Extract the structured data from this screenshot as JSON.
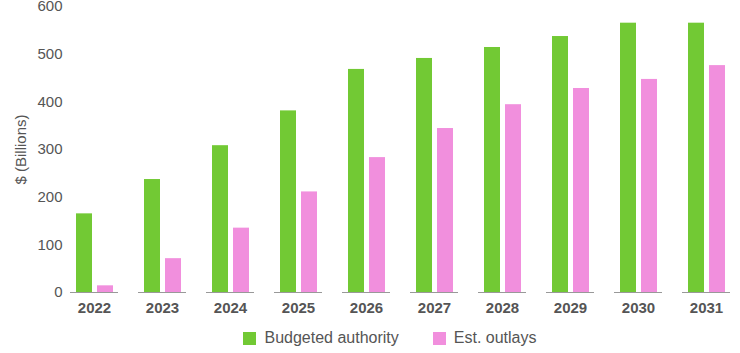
{
  "chart_data": {
    "type": "bar",
    "categories": [
      "2022",
      "2023",
      "2024",
      "2025",
      "2026",
      "2027",
      "2028",
      "2029",
      "2030",
      "2031"
    ],
    "series": [
      {
        "name": "Budgeted authority",
        "color": "#72c934",
        "values": [
          165,
          237,
          308,
          381,
          468,
          491,
          514,
          537,
          565,
          565
        ]
      },
      {
        "name": "Est. outlays",
        "color": "#f18fdd",
        "values": [
          14,
          71,
          135,
          211,
          283,
          344,
          394,
          428,
          447,
          476
        ]
      }
    ],
    "y_label": "$ (Billions)",
    "ylim": [
      0,
      600
    ],
    "yticks": [
      0,
      100,
      200,
      300,
      400,
      500,
      600
    ],
    "grid": false,
    "legend": "bottom"
  }
}
